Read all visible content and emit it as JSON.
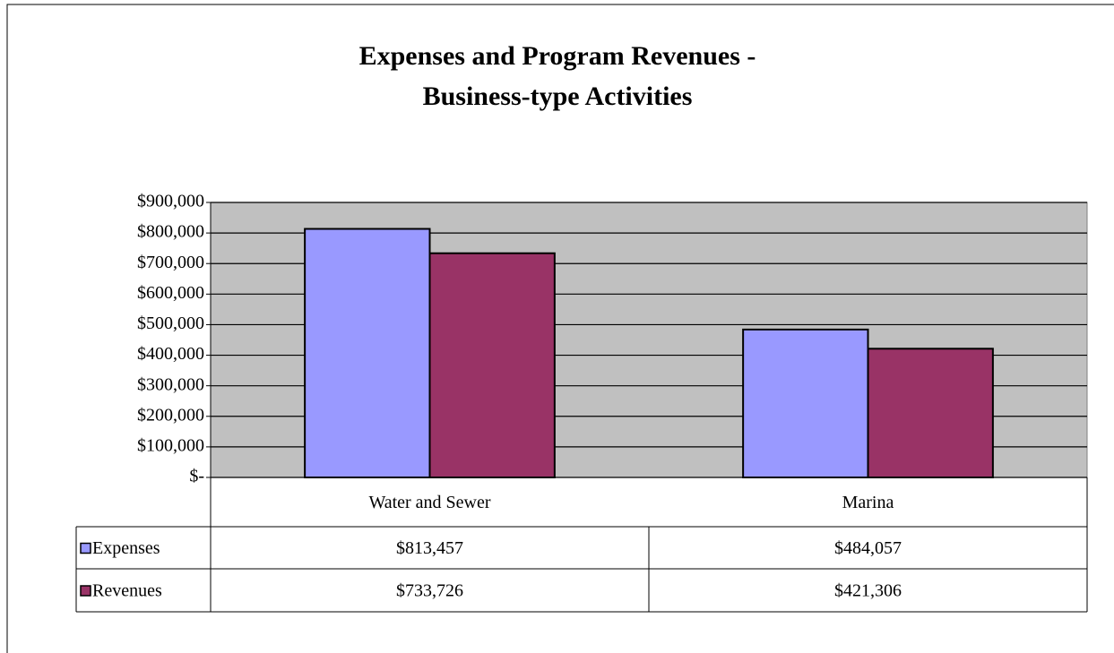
{
  "chart_data": {
    "type": "bar",
    "title": [
      "Expenses and Program Revenues -",
      "Business-type Activities"
    ],
    "categories": [
      "Water and Sewer",
      "Marina"
    ],
    "series": [
      {
        "name": "Expenses",
        "color": "#9999ff",
        "values": [
          813457,
          484057
        ],
        "value_labels": [
          "$813,457",
          "$484,057"
        ]
      },
      {
        "name": "Revenues",
        "color": "#993366",
        "values": [
          733726,
          421306
        ],
        "value_labels": [
          "$733,726",
          "$421,306"
        ]
      }
    ],
    "ylim": [
      0,
      900000
    ],
    "yticks": [
      {
        "value": 0,
        "label": "$-"
      },
      {
        "value": 100000,
        "label": "$100,000"
      },
      {
        "value": 200000,
        "label": "$200,000"
      },
      {
        "value": 300000,
        "label": "$300,000"
      },
      {
        "value": 400000,
        "label": "$400,000"
      },
      {
        "value": 500000,
        "label": "$500,000"
      },
      {
        "value": 600000,
        "label": "$600,000"
      },
      {
        "value": 700000,
        "label": "$700,000"
      },
      {
        "value": 800000,
        "label": "$800,000"
      },
      {
        "value": 900000,
        "label": "$900,000"
      }
    ],
    "grid": true,
    "plot_background": "#c0c0c0"
  }
}
